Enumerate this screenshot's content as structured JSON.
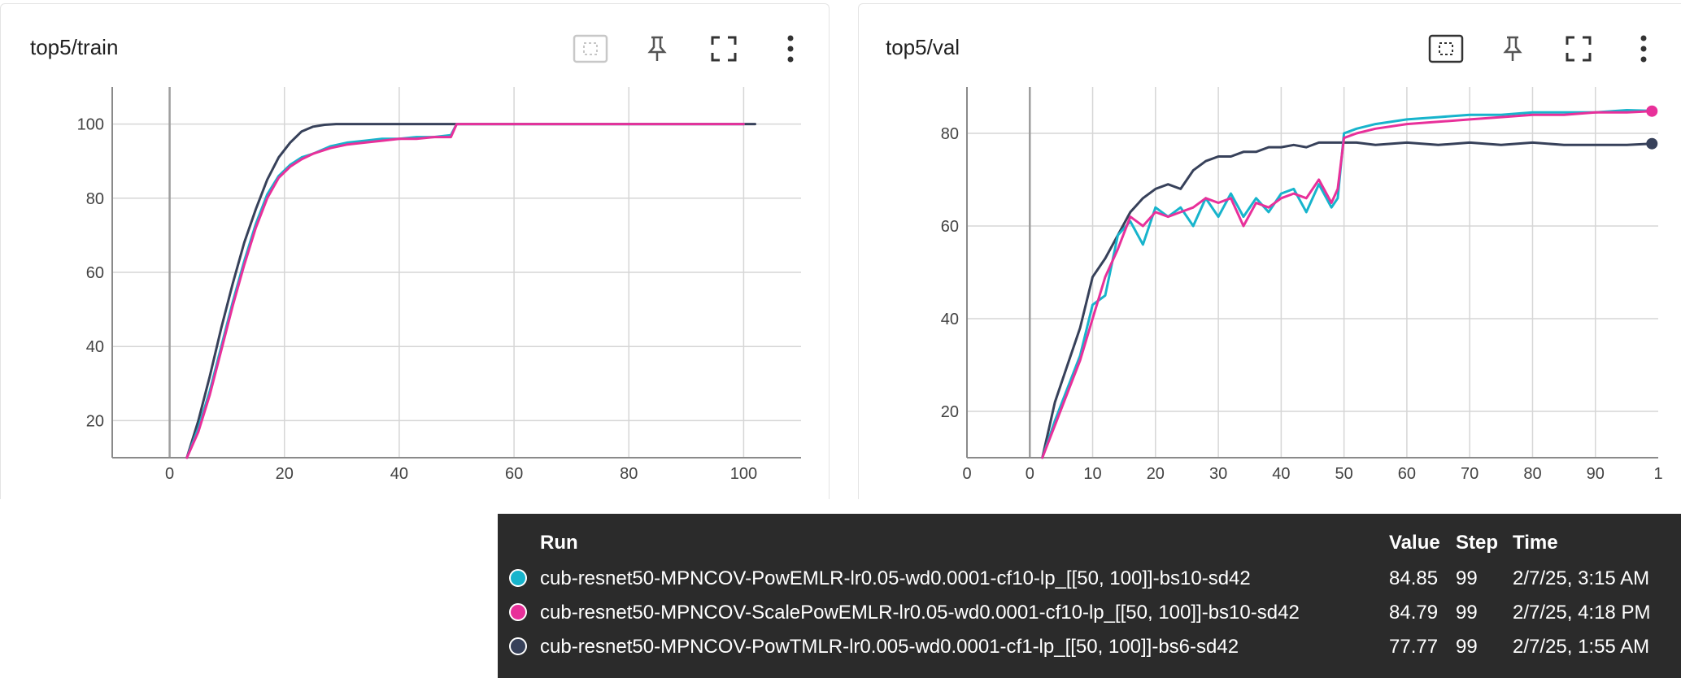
{
  "colors": {
    "cyan": "#17b4cc",
    "magenta": "#e8309a",
    "navy": "#37415a"
  },
  "cards": [
    {
      "title": "top5/train",
      "toolbar": [
        "fit-domain-icon",
        "pin-icon",
        "fullscreen-icon",
        "more-vert-icon"
      ]
    },
    {
      "title": "top5/val",
      "toolbar": [
        "fit-domain-icon",
        "pin-icon",
        "fullscreen-icon",
        "more-vert-icon"
      ]
    }
  ],
  "chart_data": [
    {
      "type": "line",
      "title": "top5/train",
      "xlabel": "",
      "ylabel": "",
      "xlim": [
        -10,
        110
      ],
      "ylim": [
        10,
        110
      ],
      "x_ticks": [
        "0",
        "20",
        "40",
        "60",
        "80",
        "100"
      ],
      "y_ticks": [
        "20",
        "40",
        "60",
        "80",
        "100"
      ],
      "grid": true,
      "series": [
        {
          "name": "cub-resnet50-MPNCOV-PowEMLR-lr0.05-wd0.0001-cf10-lp_[[50, 100]]-bs10-sd42",
          "color": "#17b4cc",
          "x": [
            3,
            5,
            7,
            9,
            11,
            13,
            15,
            17,
            19,
            21,
            23,
            25,
            28,
            31,
            34,
            37,
            40,
            43,
            46,
            49,
            50,
            51,
            60,
            70,
            80,
            90,
            100
          ],
          "y": [
            10,
            18,
            28,
            40,
            52,
            63,
            73,
            81,
            86,
            89,
            91,
            92,
            94,
            95,
            95.5,
            96,
            96,
            96.5,
            96.5,
            97,
            100,
            100,
            100,
            100,
            100,
            100,
            100
          ]
        },
        {
          "name": "cub-resnet50-MPNCOV-ScalePowEMLR-lr0.05-wd0.0001-cf10-lp_[[50, 100]]-bs10-sd42",
          "color": "#e8309a",
          "x": [
            3,
            5,
            7,
            9,
            11,
            13,
            15,
            17,
            19,
            21,
            23,
            25,
            28,
            31,
            34,
            37,
            40,
            43,
            46,
            49,
            50,
            51,
            60,
            70,
            80,
            90,
            100
          ],
          "y": [
            10,
            17,
            27,
            39,
            51,
            62,
            72,
            80,
            85.5,
            88.5,
            90.5,
            92,
            93.5,
            94.5,
            95,
            95.5,
            96,
            96,
            96.5,
            96.5,
            100,
            100,
            100,
            100,
            100,
            100,
            100
          ]
        },
        {
          "name": "cub-resnet50-MPNCOV-PowTMLR-lr0.005-wd0.0001-cf1-lp_[[50, 100]]-bs6-sd42",
          "color": "#37415a",
          "x": [
            3,
            5,
            7,
            9,
            11,
            13,
            15,
            17,
            19,
            21,
            23,
            25,
            27,
            29,
            32,
            40,
            50,
            60,
            70,
            80,
            90,
            100,
            102
          ],
          "y": [
            10,
            20,
            32,
            45,
            57,
            68,
            77,
            85,
            91,
            95,
            98,
            99.3,
            99.8,
            100,
            100,
            100,
            100,
            100,
            100,
            100,
            100,
            100,
            100
          ]
        }
      ]
    },
    {
      "type": "line",
      "title": "top5/val",
      "xlabel": "",
      "ylabel": "",
      "xlim": [
        -10,
        100
      ],
      "ylim": [
        10,
        90
      ],
      "x_ticks": [
        "0",
        "0",
        "10",
        "20",
        "30",
        "40",
        "50",
        "60",
        "70",
        "80",
        "90",
        "1"
      ],
      "y_ticks": [
        "20",
        "40",
        "60",
        "80"
      ],
      "grid": true,
      "series": [
        {
          "name": "cub-resnet50-MPNCOV-PowEMLR-lr0.05-wd0.0001-cf10-lp_[[50, 100]]-bs10-sd42",
          "color": "#17b4cc",
          "x": [
            2,
            4,
            6,
            8,
            10,
            12,
            14,
            16,
            18,
            20,
            22,
            24,
            26,
            28,
            30,
            32,
            34,
            36,
            38,
            40,
            42,
            44,
            46,
            48,
            49,
            50,
            52,
            55,
            60,
            65,
            70,
            75,
            80,
            85,
            90,
            95,
            99
          ],
          "y": [
            10,
            18,
            25,
            32,
            43,
            45,
            58,
            61,
            56,
            64,
            62,
            64,
            60,
            66,
            62,
            67,
            62,
            66,
            63,
            67,
            68,
            63,
            69,
            64,
            66,
            80,
            81,
            82,
            83,
            83.5,
            84,
            84,
            84.5,
            84.5,
            84.5,
            85,
            84.85
          ]
        },
        {
          "name": "cub-resnet50-MPNCOV-ScalePowEMLR-lr0.05-wd0.0001-cf10-lp_[[50, 100]]-bs10-sd42",
          "color": "#e8309a",
          "x": [
            2,
            4,
            6,
            8,
            10,
            12,
            14,
            16,
            18,
            20,
            22,
            24,
            26,
            28,
            30,
            32,
            34,
            36,
            38,
            40,
            42,
            44,
            46,
            48,
            49,
            50,
            52,
            55,
            60,
            65,
            70,
            75,
            80,
            85,
            90,
            95,
            99
          ],
          "y": [
            10,
            17,
            24,
            31,
            40,
            49,
            55,
            62,
            60,
            63,
            62,
            63,
            64,
            66,
            65,
            66,
            60,
            65,
            64,
            66,
            67,
            66,
            70,
            65,
            68,
            79,
            80,
            81,
            82,
            82.5,
            83,
            83.5,
            84,
            84,
            84.5,
            84.5,
            84.79
          ]
        },
        {
          "name": "cub-resnet50-MPNCOV-PowTMLR-lr0.005-wd0.0001-cf1-lp_[[50, 100]]-bs6-sd42",
          "color": "#37415a",
          "x": [
            2,
            4,
            6,
            8,
            10,
            12,
            14,
            16,
            18,
            20,
            22,
            24,
            26,
            28,
            30,
            32,
            34,
            36,
            38,
            40,
            42,
            44,
            46,
            48,
            49,
            50,
            52,
            55,
            60,
            65,
            70,
            75,
            80,
            85,
            90,
            95,
            99
          ],
          "y": [
            10,
            22,
            30,
            38,
            49,
            53,
            58,
            63,
            66,
            68,
            69,
            68,
            72,
            74,
            75,
            75,
            76,
            76,
            77,
            77,
            77.5,
            77,
            78,
            78,
            78,
            78,
            78,
            77.5,
            78,
            77.5,
            78,
            77.5,
            78,
            77.5,
            77.5,
            77.5,
            77.77
          ]
        }
      ]
    }
  ],
  "tooltip": {
    "headers": {
      "run": "Run",
      "value": "Value",
      "step": "Step",
      "time": "Time"
    },
    "rows": [
      {
        "run": "cub-resnet50-MPNCOV-PowEMLR-lr0.05-wd0.0001-cf10-lp_[[50, 100]]-bs10-sd42",
        "value": "84.85",
        "step": "99",
        "time": "2/7/25, 3:15 AM",
        "color": "#17b4cc"
      },
      {
        "run": "cub-resnet50-MPNCOV-ScalePowEMLR-lr0.05-wd0.0001-cf10-lp_[[50, 100]]-bs10-sd42",
        "value": "84.79",
        "step": "99",
        "time": "2/7/25, 4:18 PM",
        "color": "#e8309a"
      },
      {
        "run": "cub-resnet50-MPNCOV-PowTMLR-lr0.005-wd0.0001-cf1-lp_[[50, 100]]-bs6-sd42",
        "value": "77.77",
        "step": "99",
        "time": "2/7/25, 1:55 AM",
        "color": "#37415a"
      }
    ]
  }
}
